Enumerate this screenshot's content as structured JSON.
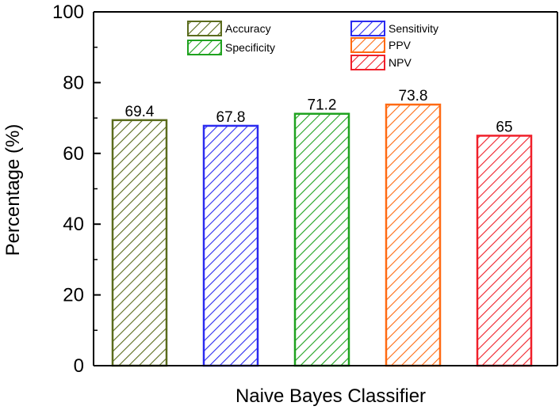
{
  "chart_data": {
    "type": "bar",
    "xlabel": "Naive Bayes Classifier",
    "ylabel": "Percentage (%)",
    "ylim": [
      0,
      100
    ],
    "yticks": [
      0,
      20,
      40,
      60,
      80,
      100
    ],
    "grid": false,
    "legend_position": "top",
    "series": [
      {
        "name": "Accuracy",
        "value": 69.4,
        "value_label": "69.4",
        "color": "#5a6b1c"
      },
      {
        "name": "Sensitivity",
        "value": 67.8,
        "value_label": "67.8",
        "color": "#2b2bf0"
      },
      {
        "name": "Specificity",
        "value": 71.2,
        "value_label": "71.2",
        "color": "#1fa21f"
      },
      {
        "name": "PPV",
        "value": 73.8,
        "value_label": "73.8",
        "color": "#ff6a12"
      },
      {
        "name": "NPV",
        "value": 65,
        "value_label": "65",
        "color": "#f0202a"
      }
    ]
  }
}
